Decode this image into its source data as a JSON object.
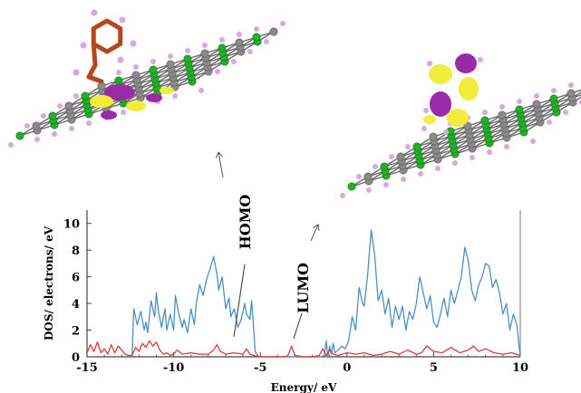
{
  "chart_data": {
    "type": "line",
    "xlabel": "Energy/ eV",
    "ylabel": "DOS/ electrons/ eV",
    "xlim": [
      -15,
      10
    ],
    "ylim": [
      0,
      11
    ],
    "x_ticks": [
      -15,
      -10,
      -5,
      0,
      5,
      10
    ],
    "y_ticks": [
      0,
      2,
      4,
      6,
      8,
      10
    ],
    "annotations": [
      {
        "text": "HOMO",
        "x": -5.2,
        "arrow": "up"
      },
      {
        "text": "LUMO",
        "x": -3.0,
        "arrow": "up"
      }
    ],
    "series": [
      {
        "color": "#4a90c8",
        "x": [
          -12.4,
          -12.3,
          -12.1,
          -11.9,
          -11.7,
          -11.6,
          -11.5,
          -11.3,
          -11.1,
          -11.0,
          -10.9,
          -10.7,
          -10.5,
          -10.4,
          -10.2,
          -10.0,
          -9.9,
          -9.7,
          -9.5,
          -9.4,
          -9.2,
          -9.0,
          -8.8,
          -8.7,
          -8.5,
          -8.3,
          -8.1,
          -7.9,
          -7.7,
          -7.5,
          -7.4,
          -7.2,
          -7.0,
          -6.8,
          -6.7,
          -6.5,
          -6.3,
          -6.1,
          -5.9,
          -5.8,
          -5.6,
          -5.5,
          -5.4,
          -5.3,
          -5.1,
          -4.5,
          -4.0,
          -3.5,
          -3.0,
          -2.5,
          -2.0,
          -1.5,
          -1.3,
          -1.2,
          -1.1,
          -1.0,
          -0.9,
          -0.8,
          -0.7,
          -0.5,
          -0.3,
          -0.1,
          0.1,
          0.3,
          0.5,
          0.7,
          0.9,
          1.0,
          1.1,
          1.2,
          1.3,
          1.4,
          1.6,
          1.8,
          2.0,
          2.2,
          2.4,
          2.6,
          2.8,
          3.0,
          3.2,
          3.4,
          3.6,
          3.8,
          4.0,
          4.2,
          4.4,
          4.6,
          4.8,
          5.0,
          5.2,
          5.4,
          5.6,
          5.8,
          6.0,
          6.2,
          6.4,
          6.6,
          6.8,
          7.0,
          7.2,
          7.4,
          7.6,
          7.8,
          8.0,
          8.2,
          8.4,
          8.6,
          8.8,
          9.0,
          9.2,
          9.4,
          9.6,
          9.8,
          10.0
        ],
        "y": [
          0,
          3.6,
          2.4,
          3.4,
          2.0,
          2.6,
          1.8,
          4.2,
          3.0,
          4.8,
          3.6,
          2.2,
          3.6,
          2.0,
          3.2,
          2.0,
          4.6,
          3.2,
          2.2,
          2.8,
          1.8,
          3.6,
          2.4,
          4.0,
          5.4,
          4.6,
          5.8,
          6.6,
          7.5,
          6.2,
          5.0,
          6.0,
          3.6,
          4.4,
          3.0,
          3.6,
          2.2,
          2.8,
          4.0,
          3.2,
          2.8,
          4.2,
          2.4,
          0.4,
          0,
          0,
          0,
          0,
          0,
          0,
          0,
          0,
          0.1,
          1.2,
          0,
          0.8,
          0.2,
          1.0,
          0.3,
          0.5,
          0.8,
          0.6,
          1.2,
          3.0,
          2.0,
          5.2,
          4.0,
          3.8,
          5.0,
          6.2,
          8.0,
          9.5,
          7.6,
          4.2,
          5.0,
          3.2,
          4.4,
          2.2,
          3.8,
          2.8,
          3.8,
          2.0,
          3.4,
          2.8,
          4.0,
          6.0,
          4.8,
          3.6,
          4.6,
          2.6,
          2.2,
          3.2,
          4.4,
          3.0,
          5.0,
          4.0,
          5.0,
          6.0,
          8.2,
          7.2,
          5.0,
          4.2,
          5.4,
          6.0,
          7.0,
          6.8,
          5.2,
          5.8,
          4.8,
          3.2,
          4.0,
          2.0,
          3.2,
          2.4,
          0
        ]
      },
      {
        "color": "#e0393a",
        "x": [
          -15.0,
          -14.8,
          -14.6,
          -14.4,
          -14.2,
          -14.0,
          -13.8,
          -13.6,
          -13.4,
          -13.2,
          -13.0,
          -12.8,
          -12.6,
          -12.4,
          -12.2,
          -12.0,
          -11.8,
          -11.6,
          -11.4,
          -11.2,
          -11.0,
          -10.8,
          -10.6,
          -10.4,
          -10.2,
          -10.0,
          -9.8,
          -9.5,
          -9.0,
          -8.5,
          -8.0,
          -7.7,
          -7.5,
          -7.3,
          -7.0,
          -6.5,
          -6.0,
          -5.8,
          -5.6,
          -5.4,
          -5.0,
          -4.5,
          -4.0,
          -3.6,
          -3.4,
          -3.2,
          -3.0,
          -2.5,
          -2.0,
          -1.6,
          -1.4,
          -1.2,
          -1.0,
          -0.8,
          -0.5,
          0.0,
          0.5,
          1.0,
          1.5,
          2.0,
          2.5,
          3.0,
          3.5,
          4.0,
          4.3,
          4.6,
          5.0,
          5.5,
          6.0,
          6.5,
          7.0,
          7.3,
          7.6,
          8.0,
          8.5,
          9.0,
          9.5,
          10.0
        ],
        "y": [
          0.3,
          0.9,
          0.4,
          1.1,
          0.3,
          0.6,
          0.2,
          0.9,
          0.3,
          0.8,
          0.5,
          0.2,
          0.1,
          0.1,
          0.7,
          0.4,
          1.0,
          0.7,
          1.2,
          0.8,
          1.1,
          0.5,
          0.2,
          0.3,
          0.1,
          0.2,
          0.5,
          0.2,
          0.3,
          0.2,
          0.2,
          0.5,
          0.9,
          0.4,
          0.2,
          0.3,
          0.2,
          0.6,
          0.2,
          0.1,
          0,
          0,
          0,
          0,
          0.1,
          0.8,
          0.1,
          0,
          0,
          0.1,
          0.6,
          0.1,
          0.5,
          0.2,
          0.1,
          0.3,
          0.2,
          0.3,
          0.1,
          0.2,
          0.4,
          0.2,
          0.5,
          0.2,
          0.3,
          0.8,
          0.4,
          0.3,
          0.7,
          0.3,
          0.5,
          0.8,
          0.4,
          0.6,
          0.3,
          0.2,
          0.3,
          0.1
        ]
      }
    ]
  },
  "molecule_left": {
    "description_icon": "molecule-on-graphene-homo",
    "colors": {
      "carbon_sheet": "#8a8a8a",
      "green_atoms": "#22b026",
      "hydrogen": "#d9a6e8",
      "benzyl": "#b5471e",
      "orbital_purple": "#9a2aa8",
      "orbital_yellow": "#f2ec3c"
    }
  },
  "molecule_right": {
    "description_icon": "molecule-on-graphene-lumo"
  },
  "arrows": {
    "homo_arrow_label": "",
    "lumo_arrow_label": ""
  }
}
